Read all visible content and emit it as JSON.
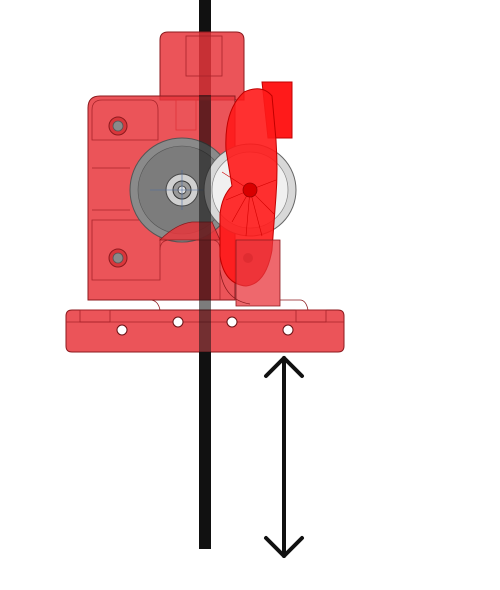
{
  "diagram": {
    "subject": "extruder-assembly",
    "colors": {
      "body": "#e8363c",
      "body_light": "#f05a5f",
      "body_dark": "#b8252a",
      "edge": "#8c1a1e",
      "lever": "#ff1a1a",
      "gear": "#8a8a8a",
      "gear_light": "#c8c8c8",
      "bearing": "#e4e4e4",
      "filament": "#111111",
      "arrow": "#111111",
      "hole": "#ffffff",
      "background": "#ffffff"
    },
    "parts": {
      "filament": "filament-strand",
      "drive_gear": "drive-gear",
      "idler_bearing": "idler-bearing",
      "idler_lever": "idler-lever",
      "mount_plate": "mounting-plate",
      "motion_arrow": "double-headed-arrow"
    }
  }
}
